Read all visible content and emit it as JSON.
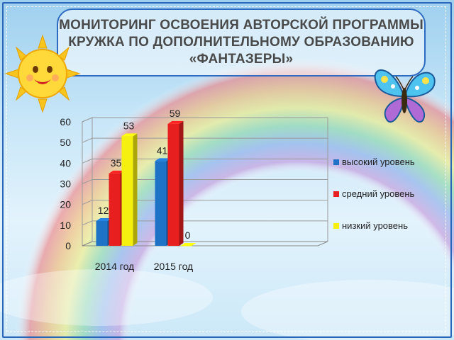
{
  "title": {
    "line1": "МОНИТОРИНГ  ОСВОЕНИЯ АВТОРСКОЙ ПРОГРАММЫ",
    "line2": "КРУЖКА ПО ДОПОЛНИТЕЛЬНОМУ ОБРАЗОВАНИЮ",
    "line3": "«ФАНТАЗЕРЫ»"
  },
  "colors": {
    "border": "#2a66b8",
    "high": "#1f73c6",
    "mid": "#e81f1f",
    "low": "#f5f010"
  },
  "decor": {
    "sun": "smiling-sun-icon",
    "butterfly": "butterfly-icon"
  },
  "chart_data": {
    "type": "bar",
    "categories": [
      "2014 год",
      "2015 год"
    ],
    "series": [
      {
        "name": "высокий уровень",
        "values": [
          12,
          41
        ],
        "color": "#1f73c6"
      },
      {
        "name": "средний уровень",
        "values": [
          35,
          59
        ],
        "color": "#e81f1f"
      },
      {
        "name": "низкий уровень",
        "values": [
          53,
          0
        ],
        "color": "#f5f010"
      }
    ],
    "ylim": [
      0,
      60
    ],
    "yticks": [
      0,
      10,
      20,
      30,
      40,
      50,
      60
    ],
    "grid": true,
    "legend": "right",
    "title": "",
    "xlabel": "",
    "ylabel": ""
  }
}
